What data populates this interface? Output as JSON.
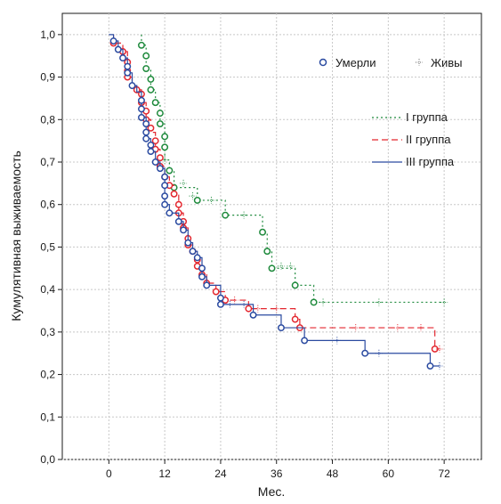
{
  "chart_data": {
    "type": "line",
    "title": "",
    "xlabel": "Мес.",
    "ylabel": "Кумулятивная выживаемость",
    "xlim": [
      -10,
      80
    ],
    "ylim": [
      0,
      1.05
    ],
    "xticks": [
      0,
      12,
      24,
      36,
      48,
      60,
      72
    ],
    "yticks": [
      "0,0",
      "0,1",
      "0,2",
      "0,3",
      "0,4",
      "0,5",
      "0,6",
      "0,7",
      "0,8",
      "0,9",
      "1,0"
    ],
    "grid": true,
    "marker_legend": {
      "died": "Умерли",
      "alive": "Живы"
    },
    "series": [
      {
        "name": "I группа",
        "color": "#1e8a3c",
        "style": "dotted",
        "steps": [
          [
            7,
            1.0
          ],
          [
            7,
            0.975
          ],
          [
            8,
            0.95
          ],
          [
            8,
            0.92
          ],
          [
            9,
            0.895
          ],
          [
            9,
            0.87
          ],
          [
            10,
            0.84
          ],
          [
            11,
            0.815
          ],
          [
            11,
            0.79
          ],
          [
            12,
            0.76
          ],
          [
            12,
            0.735
          ],
          [
            12,
            0.705
          ],
          [
            13,
            0.68
          ],
          [
            14,
            0.64
          ],
          [
            19,
            0.61
          ],
          [
            25,
            0.575
          ],
          [
            33,
            0.535
          ],
          [
            34,
            0.49
          ],
          [
            35,
            0.45
          ],
          [
            40,
            0.41
          ],
          [
            44,
            0.37
          ],
          [
            72,
            0.37
          ]
        ],
        "died": [
          [
            7,
            0.975
          ],
          [
            8,
            0.95
          ],
          [
            8,
            0.92
          ],
          [
            9,
            0.895
          ],
          [
            9,
            0.87
          ],
          [
            10,
            0.84
          ],
          [
            11,
            0.815
          ],
          [
            11,
            0.79
          ],
          [
            12,
            0.76
          ],
          [
            12,
            0.735
          ],
          [
            13,
            0.68
          ],
          [
            14,
            0.64
          ],
          [
            19,
            0.61
          ],
          [
            25,
            0.575
          ],
          [
            33,
            0.535
          ],
          [
            34,
            0.49
          ],
          [
            35,
            0.45
          ],
          [
            40,
            0.41
          ],
          [
            44,
            0.37
          ]
        ],
        "alive": [
          [
            12,
            0.705
          ],
          [
            16,
            0.65
          ],
          [
            18,
            0.62
          ],
          [
            22,
            0.61
          ],
          [
            29,
            0.575
          ],
          [
            37,
            0.455
          ],
          [
            39,
            0.455
          ],
          [
            46,
            0.37
          ],
          [
            58,
            0.37
          ],
          [
            72,
            0.37
          ]
        ]
      },
      {
        "name": "II группа",
        "color": "#e3262e",
        "style": "dashed",
        "steps": [
          [
            1,
            1.0
          ],
          [
            1,
            0.98
          ],
          [
            3,
            0.96
          ],
          [
            4,
            0.935
          ],
          [
            4,
            0.915
          ],
          [
            4,
            0.9
          ],
          [
            5,
            0.88
          ],
          [
            6,
            0.87
          ],
          [
            7,
            0.86
          ],
          [
            7,
            0.84
          ],
          [
            8,
            0.82
          ],
          [
            8,
            0.8
          ],
          [
            9,
            0.78
          ],
          [
            9,
            0.77
          ],
          [
            10,
            0.75
          ],
          [
            10,
            0.73
          ],
          [
            11,
            0.71
          ],
          [
            11,
            0.69
          ],
          [
            12,
            0.665
          ],
          [
            13,
            0.645
          ],
          [
            14,
            0.625
          ],
          [
            15,
            0.6
          ],
          [
            15,
            0.58
          ],
          [
            16,
            0.56
          ],
          [
            16,
            0.545
          ],
          [
            17,
            0.52
          ],
          [
            17,
            0.505
          ],
          [
            18,
            0.49
          ],
          [
            19,
            0.47
          ],
          [
            19,
            0.455
          ],
          [
            20,
            0.435
          ],
          [
            21,
            0.415
          ],
          [
            23,
            0.395
          ],
          [
            25,
            0.375
          ],
          [
            30,
            0.355
          ],
          [
            40,
            0.33
          ],
          [
            41,
            0.31
          ],
          [
            70,
            0.26
          ],
          [
            71,
            0.26
          ]
        ],
        "died": [
          [
            1,
            0.98
          ],
          [
            3,
            0.96
          ],
          [
            4,
            0.935
          ],
          [
            4,
            0.915
          ],
          [
            4,
            0.9
          ],
          [
            6,
            0.87
          ],
          [
            7,
            0.86
          ],
          [
            7,
            0.84
          ],
          [
            8,
            0.82
          ],
          [
            8,
            0.8
          ],
          [
            9,
            0.78
          ],
          [
            10,
            0.75
          ],
          [
            10,
            0.73
          ],
          [
            11,
            0.71
          ],
          [
            11,
            0.69
          ],
          [
            12,
            0.665
          ],
          [
            13,
            0.645
          ],
          [
            14,
            0.625
          ],
          [
            15,
            0.6
          ],
          [
            15,
            0.58
          ],
          [
            16,
            0.56
          ],
          [
            16,
            0.545
          ],
          [
            17,
            0.52
          ],
          [
            17,
            0.505
          ],
          [
            18,
            0.49
          ],
          [
            19,
            0.47
          ],
          [
            19,
            0.455
          ],
          [
            20,
            0.435
          ],
          [
            21,
            0.415
          ],
          [
            23,
            0.395
          ],
          [
            25,
            0.375
          ],
          [
            30,
            0.355
          ],
          [
            40,
            0.33
          ],
          [
            41,
            0.31
          ],
          [
            70,
            0.26
          ]
        ],
        "alive": [
          [
            27,
            0.375
          ],
          [
            32,
            0.355
          ],
          [
            36,
            0.355
          ],
          [
            53,
            0.31
          ],
          [
            62,
            0.31
          ],
          [
            67,
            0.31
          ],
          [
            71,
            0.26
          ]
        ]
      },
      {
        "name": "III группа",
        "color": "#2a4aa0",
        "style": "solid",
        "steps": [
          [
            0,
            1.0
          ],
          [
            1,
            0.985
          ],
          [
            2,
            0.965
          ],
          [
            3,
            0.945
          ],
          [
            4,
            0.925
          ],
          [
            4,
            0.91
          ],
          [
            5,
            0.88
          ],
          [
            6,
            0.865
          ],
          [
            7,
            0.845
          ],
          [
            7,
            0.825
          ],
          [
            7,
            0.805
          ],
          [
            8,
            0.79
          ],
          [
            8,
            0.77
          ],
          [
            8,
            0.755
          ],
          [
            9,
            0.74
          ],
          [
            9,
            0.725
          ],
          [
            10,
            0.7
          ],
          [
            11,
            0.685
          ],
          [
            12,
            0.665
          ],
          [
            12,
            0.645
          ],
          [
            12,
            0.62
          ],
          [
            12,
            0.6
          ],
          [
            13,
            0.58
          ],
          [
            15,
            0.56
          ],
          [
            16,
            0.54
          ],
          [
            17,
            0.51
          ],
          [
            18,
            0.49
          ],
          [
            19,
            0.475
          ],
          [
            20,
            0.45
          ],
          [
            20,
            0.43
          ],
          [
            21,
            0.41
          ],
          [
            24,
            0.38
          ],
          [
            24,
            0.365
          ],
          [
            31,
            0.34
          ],
          [
            37,
            0.31
          ],
          [
            42,
            0.28
          ],
          [
            55,
            0.25
          ],
          [
            69,
            0.22
          ],
          [
            71,
            0.22
          ]
        ],
        "died": [
          [
            1,
            0.985
          ],
          [
            2,
            0.965
          ],
          [
            3,
            0.945
          ],
          [
            4,
            0.925
          ],
          [
            4,
            0.91
          ],
          [
            5,
            0.88
          ],
          [
            7,
            0.845
          ],
          [
            7,
            0.825
          ],
          [
            7,
            0.805
          ],
          [
            8,
            0.79
          ],
          [
            8,
            0.77
          ],
          [
            8,
            0.755
          ],
          [
            9,
            0.74
          ],
          [
            9,
            0.725
          ],
          [
            10,
            0.7
          ],
          [
            11,
            0.685
          ],
          [
            12,
            0.665
          ],
          [
            12,
            0.645
          ],
          [
            12,
            0.62
          ],
          [
            12,
            0.6
          ],
          [
            13,
            0.58
          ],
          [
            15,
            0.56
          ],
          [
            16,
            0.54
          ],
          [
            17,
            0.51
          ],
          [
            18,
            0.49
          ],
          [
            19,
            0.475
          ],
          [
            20,
            0.45
          ],
          [
            20,
            0.43
          ],
          [
            21,
            0.41
          ],
          [
            24,
            0.38
          ],
          [
            24,
            0.365
          ],
          [
            31,
            0.34
          ],
          [
            37,
            0.31
          ],
          [
            42,
            0.28
          ],
          [
            55,
            0.25
          ],
          [
            69,
            0.22
          ]
        ],
        "alive": [
          [
            26,
            0.365
          ],
          [
            29,
            0.365
          ],
          [
            49,
            0.28
          ],
          [
            58,
            0.25
          ],
          [
            71,
            0.22
          ]
        ]
      }
    ]
  }
}
